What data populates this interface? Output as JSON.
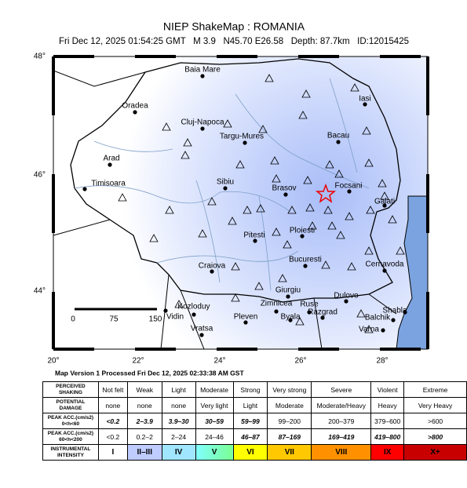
{
  "header": {
    "title": "NIEP ShakeMap : ROMANIA",
    "subtitle": "Fri Dec 12, 2025 01:54:25 GMT   M 3.9   N45.70 E26.58   Depth: 87.7km   ID:12015425"
  },
  "map": {
    "lat_labels": [
      "48°",
      "46°",
      "44°"
    ],
    "lon_labels": [
      "20°",
      "22°",
      "24°",
      "26°",
      "28°"
    ],
    "cities": [
      "Baia Mare",
      "Oradea",
      "Cluj-Napoca",
      "Targu-Mures",
      "Arad",
      "Timisoara",
      "Sibiu",
      "Brasov",
      "Iasi",
      "Bacau",
      "Focsani",
      "Galati",
      "Ploiesti",
      "Pitesti",
      "Craiova",
      "Bucuresti",
      "Cernavoda",
      "Giurgiu",
      "Zimnicea",
      "Ruse",
      "Dulovo",
      "Kozloduy",
      "Vidin",
      "Shabla",
      "Razgrad",
      "Byala",
      "Balchik",
      "Pleven",
      "Varna",
      "Vratsa"
    ],
    "scale_labels": [
      "0",
      "75",
      "150"
    ]
  },
  "footer": {
    "version": "Map Version 1 Processed Fri Dec 12, 2025 02:33:38 AM GST"
  },
  "legend": {
    "rows": [
      {
        "label": [
          "PERCEIVED",
          "SHAKING"
        ],
        "cells": [
          "Not felt",
          "Weak",
          "Light",
          "Moderate",
          "Strong",
          "Very strong",
          "Severe",
          "Violent",
          "Extreme"
        ]
      },
      {
        "label": [
          "POTENTIAL",
          "DAMAGE"
        ],
        "cells": [
          "none",
          "none",
          "none",
          "Very light",
          "Light",
          "Moderate",
          "Moderate/Heavy",
          "Heavy",
          "Very Heavy"
        ]
      },
      {
        "label": [
          "PEAK ACC.(cm/s2)",
          "0<h<60"
        ],
        "cells": [
          "<0.2",
          "2–3.9",
          "3.9–30",
          "30–59",
          "59–99",
          "99–200",
          "200–379",
          "379–600",
          ">600"
        ]
      },
      {
        "label": [
          "PEAK ACC.(cm/s2)",
          "60<h<200"
        ],
        "cells": [
          "<0.2",
          "0.2–2",
          "2–24",
          "24–46",
          "46–87",
          "87–169",
          "169–419",
          "419–800",
          ">800"
        ]
      },
      {
        "label": [
          "INSTRUMENTAL",
          "INTENSITY"
        ],
        "cells": [
          "I",
          "II–III",
          "IV",
          "V",
          "VI",
          "VII",
          "VIII",
          "IX",
          "X+"
        ]
      }
    ]
  }
}
